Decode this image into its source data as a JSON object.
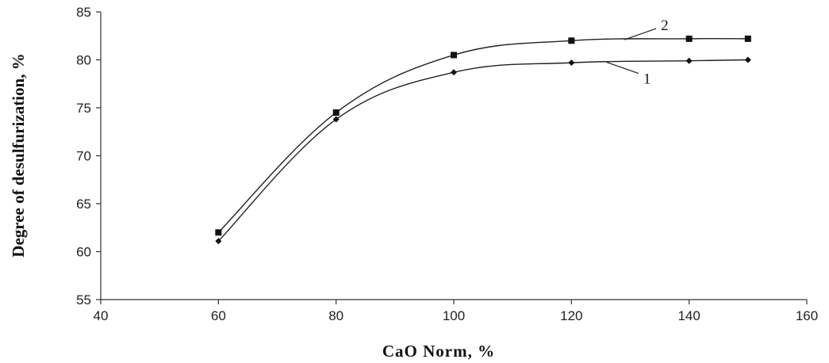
{
  "chart_data": {
    "type": "line",
    "xlabel": "CaO Norm, %",
    "ylabel": "Degree of desulfurization, %",
    "xlim": [
      40,
      160
    ],
    "ylim": [
      55,
      85
    ],
    "xticks": [
      "40",
      "60",
      "80",
      "100",
      "120",
      "140",
      "160"
    ],
    "yticks": [
      "55",
      "60",
      "65",
      "70",
      "75",
      "80",
      "85"
    ],
    "grid": false,
    "x": [
      60,
      80,
      100,
      120,
      140,
      150
    ],
    "series": [
      {
        "name": "1",
        "marker": "diamond",
        "values": [
          61.1,
          73.8,
          78.7,
          79.7,
          79.9,
          80.0
        ]
      },
      {
        "name": "2",
        "marker": "square",
        "values": [
          62.0,
          74.5,
          80.5,
          82.0,
          82.2,
          82.2
        ]
      }
    ]
  }
}
